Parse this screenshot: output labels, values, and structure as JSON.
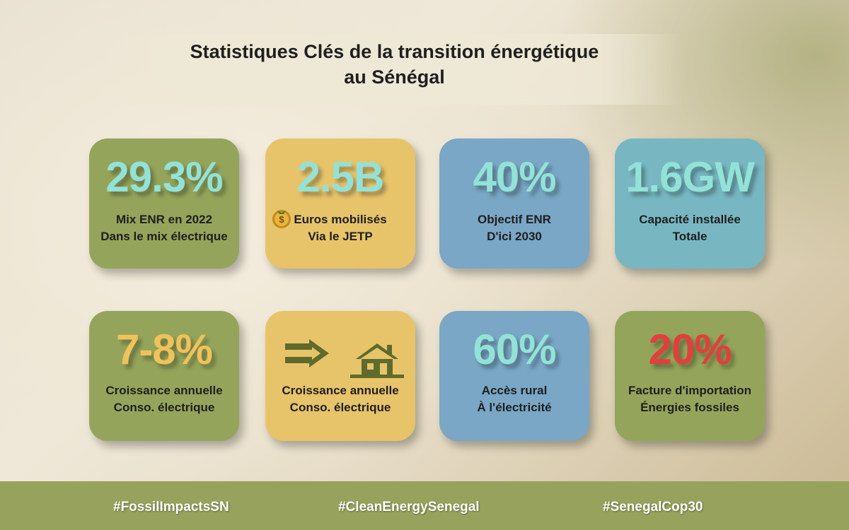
{
  "title": {
    "line1": "Statistiques Clés de la transition énergétique",
    "line2": "au Sénégal"
  },
  "cards": [
    {
      "value": "29.3%",
      "line1": "Mix ENR en 2022",
      "line2": "Dans le mix électrique"
    },
    {
      "value": "2.5B",
      "line1": "Euros mobilisés",
      "line2": "Via le JETP",
      "icon": "money-bag-icon"
    },
    {
      "value": "40%",
      "line1": "Objectif ENR",
      "line2": "D'ici 2030"
    },
    {
      "value": "1.6GW",
      "line1": "Capacité installée",
      "line2": "Totale"
    },
    {
      "value": "7-8%",
      "line1": "Croissance annuelle",
      "line2": "Conso. électrique"
    },
    {
      "line1": "Croissance annuelle",
      "line2": "Conso. électrique",
      "icons": [
        "arrow-right-icon",
        "house-icon"
      ]
    },
    {
      "value": "60%",
      "line1": "Accès rural",
      "line2": "À l'électricité"
    },
    {
      "value": "20%",
      "line1": "Facture d'importation",
      "line2": "Énergies fossiles"
    }
  ],
  "colors": {
    "green": "#94a55b",
    "yellow": "#e7c46a",
    "blue": "#79a7c5",
    "teal": "#78b7c2",
    "mint_text": "#93e2d7",
    "gold_text": "#f0c25a",
    "red_text": "#e0403c",
    "footer": "#97a35d"
  },
  "footer": {
    "tags": [
      "#FossilImpactsSN",
      "#CleanEnergySenegal",
      "#SenegalCop30"
    ]
  }
}
